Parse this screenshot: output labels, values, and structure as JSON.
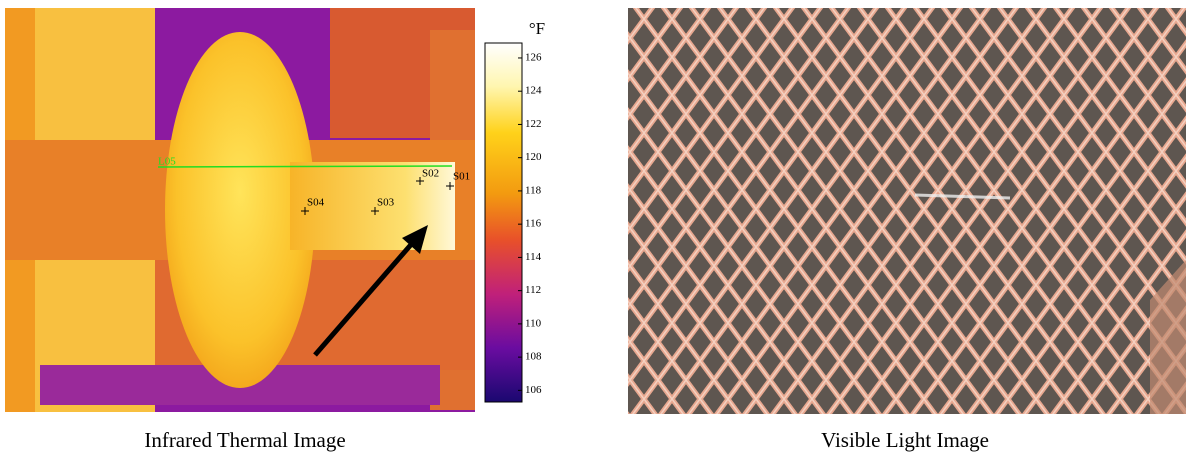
{
  "figure": {
    "panels": [
      {
        "caption": "Infrared Thermal Image"
      },
      {
        "caption": "Visible Light Image"
      }
    ],
    "thermal": {
      "line_label": "L05",
      "spots": [
        "S01",
        "S02",
        "S03",
        "S04"
      ]
    },
    "colorbar": {
      "unit": "°F",
      "lim": [
        105.3,
        126.9
      ],
      "ticks": [
        106,
        108,
        110,
        112,
        114,
        116,
        118,
        120,
        122,
        124,
        126
      ]
    }
  }
}
